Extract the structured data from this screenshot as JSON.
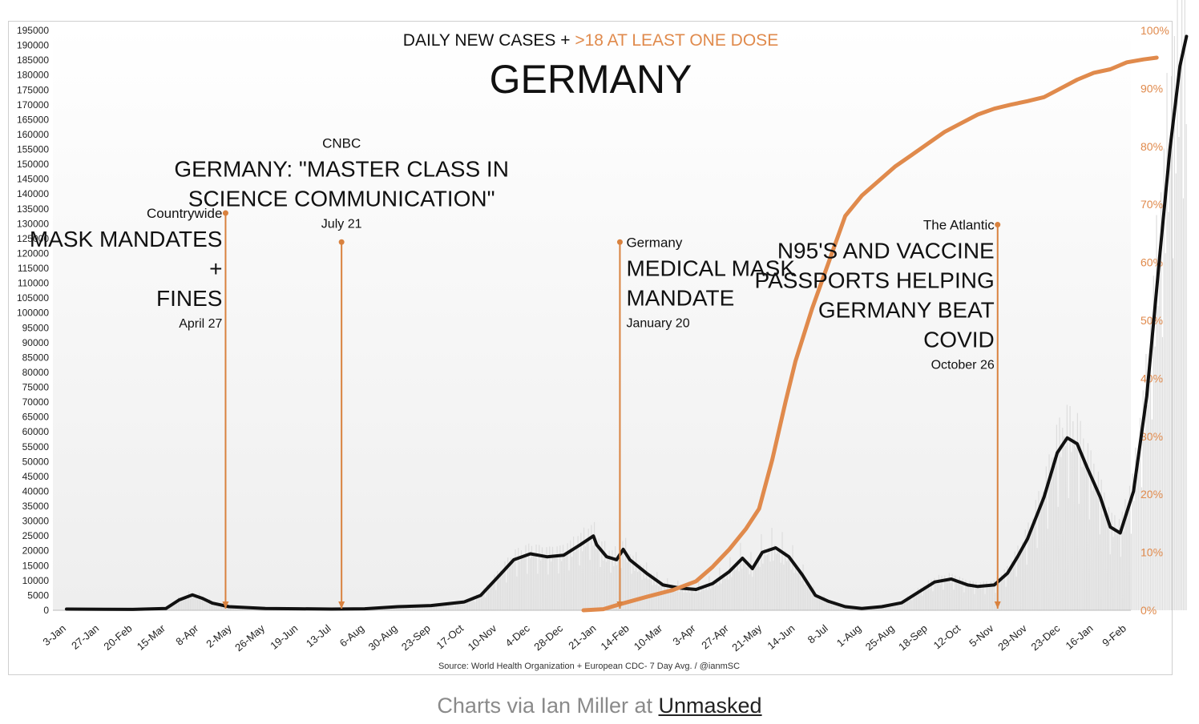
{
  "chart_data": {
    "type": "line",
    "title_prefix": "DAILY NEW CASES + ",
    "title_highlight": ">18 AT LEAST ONE DOSE",
    "main_title": "GERMANY",
    "source": "Source: World Health Organization + European CDC- 7 Day Avg. / @ianmSC",
    "x_tick_labels": [
      "3-Jan",
      "27-Jan",
      "20-Feb",
      "15-Mar",
      "8-Apr",
      "2-May",
      "26-May",
      "19-Jun",
      "13-Jul",
      "6-Aug",
      "30-Aug",
      "23-Sep",
      "17-Oct",
      "10-Nov",
      "4-Dec",
      "28-Dec",
      "21-Jan",
      "14-Feb",
      "10-Mar",
      "3-Apr",
      "27-Apr",
      "21-May",
      "14-Jun",
      "8-Jul",
      "1-Aug",
      "25-Aug",
      "18-Sep",
      "12-Oct",
      "5-Nov",
      "29-Nov",
      "23-Dec",
      "16-Jan",
      "9-Feb"
    ],
    "y_left_ticks": [
      "0",
      "5000",
      "10000",
      "15000",
      "20000",
      "25000",
      "30000",
      "35000",
      "40000",
      "45000",
      "50000",
      "55000",
      "60000",
      "65000",
      "70000",
      "75000",
      "80000",
      "85000",
      "90000",
      "95000",
      "100000",
      "105000",
      "110000",
      "115000",
      "120000",
      "125000",
      "130000",
      "135000",
      "140000",
      "145000",
      "150000",
      "155000",
      "160000",
      "165000",
      "170000",
      "175000",
      "180000",
      "185000",
      "190000",
      "195000"
    ],
    "y_right_ticks": [
      "0%",
      "10%",
      "20%",
      "30%",
      "40%",
      "50%",
      "60%",
      "70%",
      "80%",
      "90%",
      "100%"
    ],
    "ylim_left": [
      0,
      195000
    ],
    "ylim_right": [
      0,
      100
    ],
    "colors": {
      "cases": "#111111",
      "vaccine": "#e08a4c",
      "annotation": "#d9823f",
      "daily_bars": "#dddddd"
    },
    "series": [
      {
        "name": "Daily new cases (7-day avg)",
        "axis": "left",
        "points": [
          [
            0,
            400
          ],
          [
            2,
            300
          ],
          [
            3,
            600
          ],
          [
            3.4,
            3500
          ],
          [
            3.8,
            5200
          ],
          [
            4.1,
            4000
          ],
          [
            4.4,
            2400
          ],
          [
            4.9,
            1200
          ],
          [
            6,
            600
          ],
          [
            7,
            500
          ],
          [
            8,
            400
          ],
          [
            9,
            500
          ],
          [
            10,
            1200
          ],
          [
            11,
            1600
          ],
          [
            12,
            2800
          ],
          [
            12.5,
            5000
          ],
          [
            13,
            11000
          ],
          [
            13.5,
            17000
          ],
          [
            14,
            19000
          ],
          [
            14.5,
            18000
          ],
          [
            15,
            18500
          ],
          [
            15.5,
            22000
          ],
          [
            15.9,
            25000
          ],
          [
            16,
            22000
          ],
          [
            16.3,
            18000
          ],
          [
            16.6,
            17000
          ],
          [
            16.8,
            20500
          ],
          [
            17,
            17000
          ],
          [
            17.5,
            12500
          ],
          [
            18,
            8500
          ],
          [
            18.5,
            7500
          ],
          [
            19,
            7000
          ],
          [
            19.5,
            9000
          ],
          [
            20,
            13000
          ],
          [
            20.4,
            17500
          ],
          [
            20.7,
            14000
          ],
          [
            21,
            19500
          ],
          [
            21.4,
            21000
          ],
          [
            21.8,
            18000
          ],
          [
            22.2,
            12000
          ],
          [
            22.6,
            5000
          ],
          [
            23,
            3000
          ],
          [
            23.5,
            1200
          ],
          [
            24,
            600
          ],
          [
            24.6,
            1200
          ],
          [
            25.2,
            2500
          ],
          [
            25.7,
            6000
          ],
          [
            26.2,
            9500
          ],
          [
            26.7,
            10500
          ],
          [
            27.2,
            8500
          ],
          [
            27.5,
            8000
          ],
          [
            28,
            8500
          ],
          [
            28.4,
            12500
          ],
          [
            28.7,
            18000
          ],
          [
            29,
            24000
          ],
          [
            29.5,
            38000
          ],
          [
            29.9,
            53000
          ],
          [
            30.2,
            58000
          ],
          [
            30.5,
            56000
          ],
          [
            30.8,
            48000
          ],
          [
            31.2,
            38000
          ],
          [
            31.5,
            28000
          ],
          [
            31.8,
            26000
          ],
          [
            32.2,
            40000
          ],
          [
            32.6,
            72000
          ],
          [
            33,
            120000
          ],
          [
            33.3,
            155000
          ],
          [
            33.6,
            183000
          ],
          [
            33.8,
            193000
          ]
        ]
      },
      {
        "name": ">18 at least one dose",
        "axis": "right",
        "points": [
          [
            15.6,
            0
          ],
          [
            16.2,
            0.2
          ],
          [
            16.8,
            1.2
          ],
          [
            17.5,
            2.3
          ],
          [
            18.3,
            3.5
          ],
          [
            19,
            5
          ],
          [
            19.5,
            7.5
          ],
          [
            20,
            10.5
          ],
          [
            20.5,
            14
          ],
          [
            20.9,
            17.5
          ],
          [
            21.3,
            26
          ],
          [
            21.7,
            36
          ],
          [
            22,
            43
          ],
          [
            22.5,
            52
          ],
          [
            23,
            60
          ],
          [
            23.5,
            68
          ],
          [
            24,
            71.5
          ],
          [
            24.5,
            74
          ],
          [
            25,
            76.5
          ],
          [
            25.5,
            78.5
          ],
          [
            26,
            80.5
          ],
          [
            26.5,
            82.5
          ],
          [
            27,
            84
          ],
          [
            27.5,
            85.5
          ],
          [
            28,
            86.5
          ],
          [
            28.5,
            87.2
          ],
          [
            29,
            87.8
          ],
          [
            29.5,
            88.5
          ],
          [
            30,
            90
          ],
          [
            30.5,
            91.5
          ],
          [
            31,
            92.7
          ],
          [
            31.5,
            93.3
          ],
          [
            32,
            94.5
          ],
          [
            32.5,
            95
          ],
          [
            32.9,
            95.3
          ]
        ]
      }
    ],
    "annotations": [
      {
        "source": "Countrywide",
        "headline": [
          "MASK MANDATES",
          "+",
          "FINES"
        ],
        "date": "April 27",
        "x": 4.8,
        "top_pct": 31.5,
        "side": "left"
      },
      {
        "source": "CNBC",
        "headline": [
          "GERMANY: \"MASTER CLASS IN",
          "SCIENCE COMMUNICATION\""
        ],
        "date": "July 21",
        "x": 8.3,
        "top_pct": 36.5,
        "side": "center"
      },
      {
        "source": "Germany",
        "headline": [
          "MEDICAL MASK",
          "MANDATE"
        ],
        "date": "January 20",
        "x": 16.7,
        "top_pct": 36.5,
        "side": "right"
      },
      {
        "source": "The Atlantic",
        "headline": [
          "N95'S AND VACCINE",
          "PASSPORTS HELPING",
          "GERMANY BEAT",
          "COVID"
        ],
        "date": "October 26",
        "x": 28.1,
        "top_pct": 33.5,
        "side": "left"
      }
    ]
  },
  "caption": {
    "prefix": "Charts via Ian Miller at ",
    "link_text": "Unmasked"
  }
}
